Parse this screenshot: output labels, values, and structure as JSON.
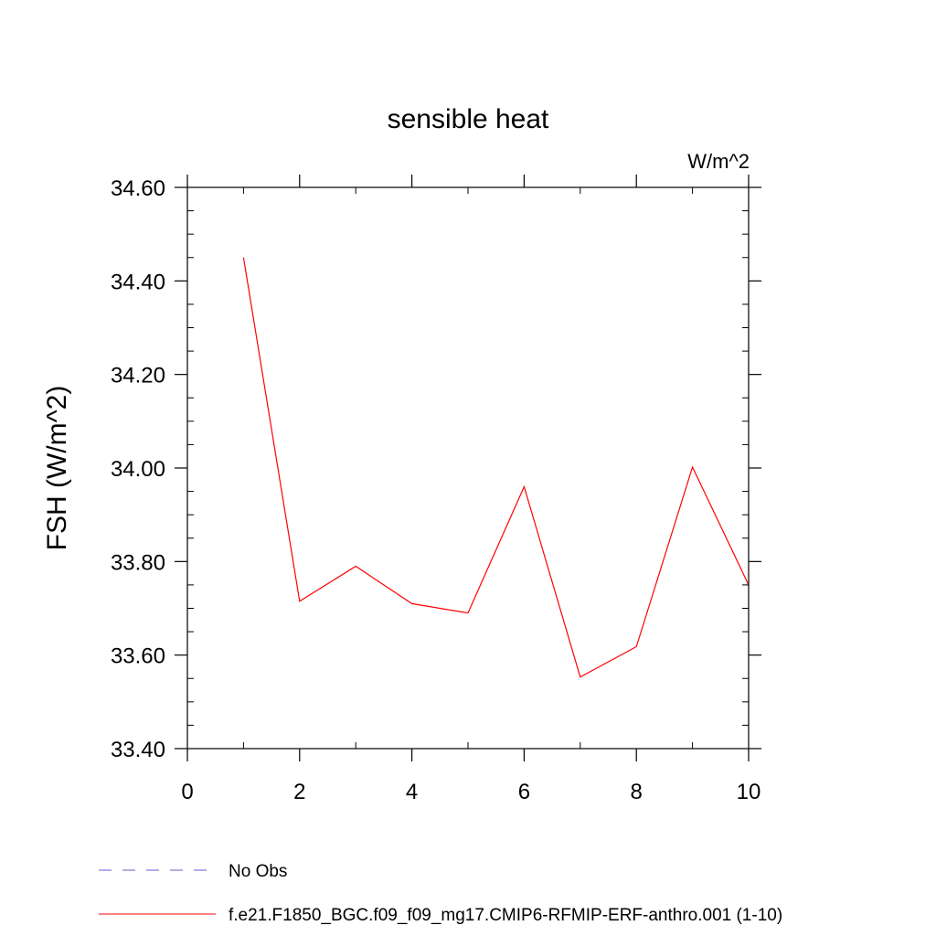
{
  "chart_data": {
    "type": "line",
    "title": "sensible heat",
    "units": "W/m^2",
    "ylabel": "FSH  (W/m^2)",
    "xlabel": "",
    "xlim": [
      0,
      10
    ],
    "ylim": [
      33.4,
      34.6
    ],
    "x_ticks": [
      {
        "value": 0,
        "label": "0"
      },
      {
        "value": 2,
        "label": "2"
      },
      {
        "value": 4,
        "label": "4"
      },
      {
        "value": 6,
        "label": "6"
      },
      {
        "value": 8,
        "label": "8"
      },
      {
        "value": 10,
        "label": "10"
      }
    ],
    "y_ticks": [
      {
        "value": 33.4,
        "label": "33.40"
      },
      {
        "value": 33.6,
        "label": "33.60"
      },
      {
        "value": 33.8,
        "label": "33.80"
      },
      {
        "value": 34.0,
        "label": "34.00"
      },
      {
        "value": 34.2,
        "label": "34.20"
      },
      {
        "value": 34.4,
        "label": "34.40"
      },
      {
        "value": 34.6,
        "label": "34.60"
      }
    ],
    "x_minor_step": 1,
    "y_minor_step": 0.05,
    "grid": false,
    "legend_position": "bottom-left",
    "series": [
      {
        "name": "f.e21.F1850_BGC.f09_f09_mg17.CMIP6-RFMIP-ERF-anthro.001 (1-10)",
        "color": "#ff0000",
        "dash": "solid",
        "x": [
          1,
          2,
          3,
          4,
          5,
          6,
          7,
          8,
          9,
          10
        ],
        "y": [
          34.45,
          33.715,
          33.79,
          33.71,
          33.69,
          33.96,
          33.553,
          33.618,
          34.002,
          33.75
        ]
      }
    ],
    "legend": [
      {
        "label": "No Obs",
        "color": "#6a5acd",
        "dash": "dashed"
      },
      {
        "label": "f.e21.F1850_BGC.f09_f09_mg17.CMIP6-RFMIP-ERF-anthro.001 (1-10)",
        "color": "#ff0000",
        "dash": "solid"
      }
    ]
  }
}
